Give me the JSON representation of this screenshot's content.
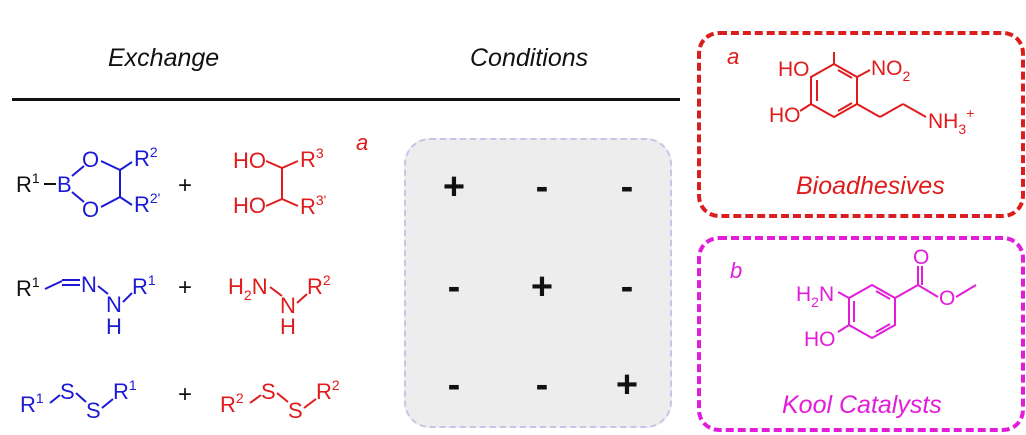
{
  "headers": {
    "exchange": "Exchange",
    "conditions": "Conditions"
  },
  "notes": {
    "a_main": "a",
    "b_main": "b",
    "a_box": "a",
    "b_box": "b"
  },
  "colors": {
    "blue": "#1a1ad6",
    "red": "#e01b1b",
    "magenta": "#e21cd8",
    "black": "#111111",
    "panel": "#ededed"
  },
  "reactions": [
    {
      "left": {
        "r1": "R",
        "r1_sup": "1",
        "b": "B",
        "o_top": "O",
        "o_bot": "O",
        "r2": "R",
        "r2_sup": "2",
        "r2p": "R",
        "r2p_sup": "2'"
      },
      "plus": "+",
      "right": {
        "ho_top": "HO",
        "ho_bot": "HO",
        "r3": "R",
        "r3_sup": "3",
        "r3p": "R",
        "r3p_sup": "3'"
      }
    },
    {
      "left": {
        "r1": "R",
        "r1_sup": "1",
        "n1": "N",
        "n2": "N",
        "h": "H",
        "r_end": "R",
        "r_end_sup": "1"
      },
      "plus": "+",
      "right": {
        "h2n": "H",
        "h2n_sub": "2",
        "h2n_n": "N",
        "n": "N",
        "h": "H",
        "r2": "R",
        "r2_sup": "2"
      }
    },
    {
      "left": {
        "r1": "R",
        "r1_sup": "1",
        "s1": "S",
        "s2": "S",
        "r_end": "R",
        "r_end_sup": "1"
      },
      "plus": "+",
      "right": {
        "r2": "R",
        "r2_sup": "2",
        "s1": "S",
        "s2": "S",
        "r_end": "R",
        "r_end_sup": "2"
      }
    }
  ],
  "conditions_grid": [
    [
      "+",
      "-",
      "-"
    ],
    [
      "-",
      "+",
      "-"
    ],
    [
      "-",
      "-",
      "+"
    ]
  ],
  "box_a": {
    "label": "a",
    "molecule": {
      "ho1": "HO",
      "ho2": "HO",
      "no2": "NO",
      "no2_sub": "2",
      "nh3": "NH",
      "nh3_sub": "3",
      "nh3_sup": "+"
    },
    "caption": "Bioadhesives"
  },
  "box_b": {
    "label": "b",
    "molecule": {
      "h2n": "H",
      "h2n_sub": "2",
      "h2n_n": "N",
      "ho": "HO",
      "o_carbonyl": "O",
      "o_ester": "O"
    },
    "caption": "Kool Catalysts"
  }
}
